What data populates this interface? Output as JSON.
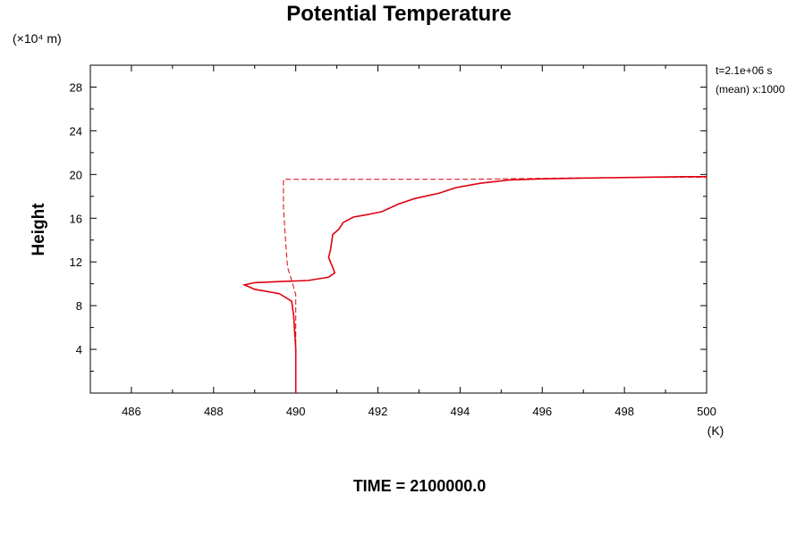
{
  "chart_data": {
    "type": "line",
    "title": "Potential Temperature",
    "ylabel": "Height",
    "y_scale_label": "(×10⁴ m)",
    "xunit": "(K)",
    "annotations": [
      "t=2.1e+06 s",
      "(mean) x:1000"
    ],
    "footer": "TIME = 2100000.0",
    "xlim": [
      485,
      500
    ],
    "ylim": [
      0,
      30
    ],
    "xticks": [
      "486",
      "488",
      "490",
      "492",
      "494",
      "496",
      "498",
      "500"
    ],
    "yticks": [
      "4",
      "8",
      "12",
      "16",
      "20",
      "24",
      "28"
    ],
    "grid": false,
    "series": [
      {
        "style": "solid",
        "color": "#e0000f",
        "points": [
          [
            490.0,
            0.0
          ],
          [
            490.0,
            4.0
          ],
          [
            489.95,
            7.0
          ],
          [
            489.9,
            8.4
          ],
          [
            489.6,
            9.1
          ],
          [
            489.0,
            9.5
          ],
          [
            488.75,
            9.9
          ],
          [
            489.0,
            10.1
          ],
          [
            489.6,
            10.2
          ],
          [
            490.3,
            10.3
          ],
          [
            490.8,
            10.6
          ],
          [
            490.95,
            11.0
          ],
          [
            490.9,
            11.5
          ],
          [
            490.8,
            12.4
          ],
          [
            490.85,
            13.2
          ],
          [
            490.9,
            14.5
          ],
          [
            491.05,
            15.0
          ],
          [
            491.15,
            15.6
          ],
          [
            491.4,
            16.1
          ],
          [
            491.7,
            16.3
          ],
          [
            492.1,
            16.6
          ],
          [
            492.5,
            17.3
          ],
          [
            492.9,
            17.8
          ],
          [
            493.5,
            18.3
          ],
          [
            493.9,
            18.8
          ],
          [
            494.5,
            19.2
          ],
          [
            495.2,
            19.5
          ],
          [
            496.0,
            19.6
          ],
          [
            497.5,
            19.7
          ],
          [
            498.5,
            19.75
          ],
          [
            499.5,
            19.8
          ],
          [
            500.0,
            19.8
          ]
        ]
      },
      {
        "style": "dashed",
        "color": "#e0000f",
        "points": [
          [
            490.0,
            0.0
          ],
          [
            490.0,
            9.0
          ],
          [
            489.9,
            10.3
          ],
          [
            489.8,
            11.5
          ],
          [
            489.75,
            14.0
          ],
          [
            489.7,
            17.0
          ],
          [
            489.7,
            19.55
          ],
          [
            494.0,
            19.55
          ],
          [
            495.0,
            19.6
          ],
          [
            497.0,
            19.7
          ],
          [
            499.0,
            19.75
          ],
          [
            500.0,
            19.75
          ]
        ]
      }
    ]
  }
}
